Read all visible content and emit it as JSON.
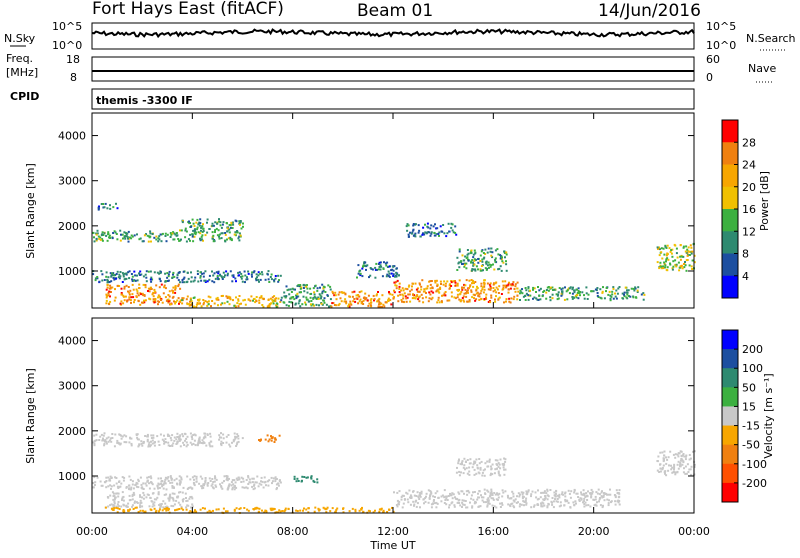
{
  "header": {
    "radar": "Fort Hays East (fitACF)",
    "beam": "Beam 01",
    "date": "14/Jun/2016"
  },
  "noise_panel": {
    "left_label": "N.Sky",
    "right_label": "N.Search",
    "left_ticks": [
      "10^5",
      "10^0"
    ],
    "right_ticks": [
      "10^5",
      "10^0"
    ]
  },
  "freq_panel": {
    "left_label_line1": "Freq.",
    "left_label_line2": "[MHz]",
    "right_label": "Nave",
    "left_ticks": [
      "18",
      "8"
    ],
    "right_ticks": [
      "60",
      "0"
    ]
  },
  "cpid": {
    "label": "CPID",
    "program": "themis -3300 IF"
  },
  "x_axis": {
    "label": "Time UT",
    "ticks": [
      "00:00",
      "04:00",
      "08:00",
      "12:00",
      "16:00",
      "20:00",
      "00:00"
    ],
    "range_hours": [
      0,
      24
    ]
  },
  "power_panel": {
    "ylabel": "Slant Range [km]",
    "yticks": [
      "1000",
      "2000",
      "3000",
      "4000"
    ],
    "colorbar_label": "Power [dB]",
    "colorbar_ticks": [
      "4",
      "8",
      "12",
      "16",
      "20",
      "24",
      "28"
    ],
    "colors": [
      "#0000ff",
      "#1c4fa0",
      "#2e8a70",
      "#3cb040",
      "#f0c000",
      "#f7a600",
      "#f08010",
      "#ff0000"
    ]
  },
  "velocity_panel": {
    "ylabel": "Slant Range [km]",
    "yticks": [
      "1000",
      "2000",
      "3000",
      "4000"
    ],
    "colorbar_label": "Velocity [m s⁻¹]",
    "colorbar_ticks": [
      "200",
      "100",
      "50",
      "15",
      "-15",
      "-50",
      "-100",
      "-200"
    ],
    "colors": [
      "#0000ff",
      "#1c4fa0",
      "#2e8a70",
      "#3cb040",
      "#c8c8c8",
      "#f7a600",
      "#f08010",
      "#ff5000",
      "#ff0000"
    ],
    "ground_scatter_color": "#c8c8c8"
  },
  "chart_data": {
    "type": "heatmap",
    "x_unit": "hours UT",
    "y_unit": "km",
    "xlim": [
      0,
      24
    ],
    "ylim": [
      180,
      4500
    ],
    "power_regions": [
      {
        "t0": 0.0,
        "t1": 3.5,
        "r0": 1650,
        "r1": 1900,
        "db": 12
      },
      {
        "t0": 3.5,
        "t1": 6.0,
        "r0": 1650,
        "r1": 2150,
        "db": 12
      },
      {
        "t0": 0.2,
        "t1": 1.0,
        "r0": 2350,
        "r1": 2500,
        "db": 8
      },
      {
        "t0": 0.0,
        "t1": 7.5,
        "r0": 750,
        "r1": 1000,
        "db": 8
      },
      {
        "t0": 0.5,
        "t1": 3.5,
        "r0": 250,
        "r1": 700,
        "db": 24
      },
      {
        "t0": 3.5,
        "t1": 7.5,
        "r0": 200,
        "r1": 450,
        "db": 20
      },
      {
        "t0": 7.5,
        "t1": 9.5,
        "r0": 200,
        "r1": 700,
        "db": 12
      },
      {
        "t0": 9.5,
        "t1": 12.0,
        "r0": 200,
        "r1": 550,
        "db": 24
      },
      {
        "t0": 12.0,
        "t1": 17.0,
        "r0": 300,
        "r1": 800,
        "db": 24
      },
      {
        "t0": 17.0,
        "t1": 22.0,
        "r0": 350,
        "r1": 650,
        "db": 12
      },
      {
        "t0": 14.5,
        "t1": 16.5,
        "r0": 1000,
        "r1": 1500,
        "db": 12
      },
      {
        "t0": 22.5,
        "t1": 24.0,
        "r0": 1000,
        "r1": 1600,
        "db": 16
      },
      {
        "t0": 10.5,
        "t1": 12.2,
        "r0": 850,
        "r1": 1200,
        "db": 8
      },
      {
        "t0": 12.5,
        "t1": 14.5,
        "r0": 1750,
        "r1": 2050,
        "db": 8
      }
    ],
    "velocity_regions": [
      {
        "t0": 0.0,
        "t1": 6.0,
        "r0": 1650,
        "r1": 1950,
        "v": 0
      },
      {
        "t0": 0.0,
        "t1": 7.5,
        "r0": 700,
        "r1": 1000,
        "v": 0
      },
      {
        "t0": 0.5,
        "t1": 4.0,
        "r0": 300,
        "r1": 650,
        "v": 0
      },
      {
        "t0": 0.5,
        "t1": 9.5,
        "r0": 180,
        "r1": 300,
        "v": -50
      },
      {
        "t0": 9.5,
        "t1": 12.0,
        "r0": 180,
        "r1": 300,
        "v": -50
      },
      {
        "t0": 12.0,
        "t1": 21.0,
        "r0": 300,
        "r1": 700,
        "v": 0
      },
      {
        "t0": 14.5,
        "t1": 16.5,
        "r0": 1000,
        "r1": 1400,
        "v": 0
      },
      {
        "t0": 22.5,
        "t1": 24.0,
        "r0": 1000,
        "r1": 1550,
        "v": 0
      },
      {
        "t0": 8.0,
        "t1": 9.0,
        "r0": 850,
        "r1": 1000,
        "v": 50
      },
      {
        "t0": 6.5,
        "t1": 7.5,
        "r0": 1750,
        "r1": 1900,
        "v": -100
      }
    ]
  }
}
